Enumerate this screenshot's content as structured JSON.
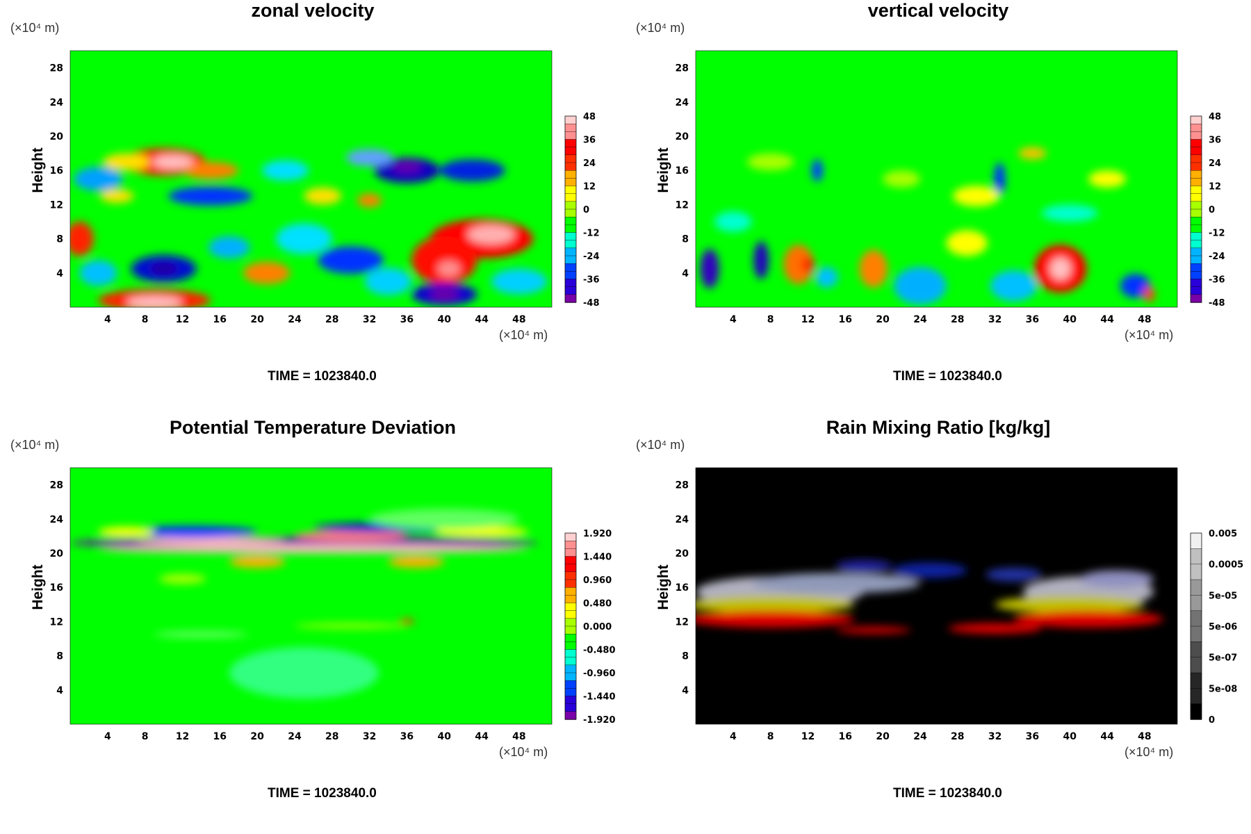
{
  "time_label": "TIME = 1023840.0",
  "y_axis_label": "Height",
  "unit_label": "(×10⁴ m)",
  "chart_data": [
    {
      "type": "heatmap",
      "title": "zonal velocity",
      "xlabel": "(×10⁴ m)",
      "ylabel": "Height",
      "x_ticks": [
        "4",
        "8",
        "12",
        "16",
        "20",
        "24",
        "28",
        "32",
        "36",
        "40",
        "44",
        "48"
      ],
      "y_ticks": [
        "4",
        "8",
        "12",
        "16",
        "20",
        "24",
        "28"
      ],
      "colorbar_ticks": [
        "48",
        "36",
        "24",
        "12",
        "0",
        "-12",
        "-24",
        "-36",
        "-48"
      ],
      "colormap": "rainbow",
      "field_min": -48,
      "field_max": 48,
      "time": "TIME = 1023840.0",
      "background_color": "#00ff00"
    },
    {
      "type": "heatmap",
      "title": "vertical velocity",
      "xlabel": "(×10⁴ m)",
      "ylabel": "Height",
      "x_ticks": [
        "4",
        "8",
        "12",
        "16",
        "20",
        "24",
        "28",
        "32",
        "36",
        "40",
        "44",
        "48"
      ],
      "y_ticks": [
        "4",
        "8",
        "12",
        "16",
        "20",
        "24",
        "28"
      ],
      "colorbar_ticks": [
        "48",
        "36",
        "24",
        "12",
        "0",
        "-12",
        "-24",
        "-36",
        "-48"
      ],
      "colormap": "rainbow",
      "field_min": -48,
      "field_max": 48,
      "time": "TIME = 1023840.0",
      "background_color": "#00ff00"
    },
    {
      "type": "heatmap",
      "title": "Potential Temperature Deviation",
      "xlabel": "(×10⁴ m)",
      "ylabel": "Height",
      "x_ticks": [
        "4",
        "8",
        "12",
        "16",
        "20",
        "24",
        "28",
        "32",
        "36",
        "40",
        "44",
        "48"
      ],
      "y_ticks": [
        "4",
        "8",
        "12",
        "16",
        "20",
        "24",
        "28"
      ],
      "colorbar_ticks": [
        "1.920",
        "1.440",
        "0.960",
        "0.480",
        "0.000",
        "-0.480",
        "-0.960",
        "-1.440",
        "-1.920"
      ],
      "colormap": "rainbow",
      "field_min": -1.92,
      "field_max": 1.92,
      "time": "TIME = 1023840.0",
      "background_color": "#00ff00"
    },
    {
      "type": "heatmap",
      "title": "Rain Mixing Ratio [kg/kg]",
      "xlabel": "(×10⁴ m)",
      "ylabel": "Height",
      "x_ticks": [
        "4",
        "8",
        "12",
        "16",
        "20",
        "24",
        "28",
        "32",
        "36",
        "40",
        "44",
        "48"
      ],
      "y_ticks": [
        "4",
        "8",
        "12",
        "16",
        "20",
        "24",
        "28"
      ],
      "colorbar_ticks": [
        "0.005",
        "0.0005",
        "5e-05",
        "5e-06",
        "5e-07",
        "5e-08",
        "0"
      ],
      "colormap": "gray-log",
      "field_min": 0,
      "field_max": 0.005,
      "time": "TIME = 1023840.0",
      "background_color": "#000000"
    }
  ]
}
